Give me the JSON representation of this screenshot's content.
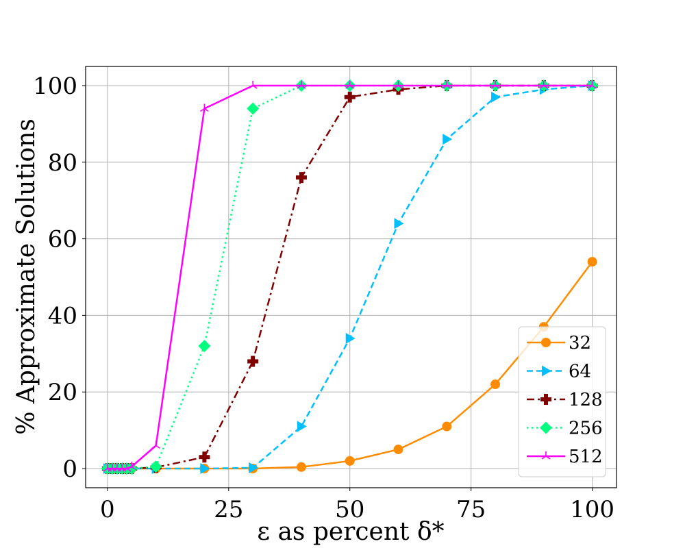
{
  "chart_data": {
    "type": "line",
    "title": "",
    "xlabel": "ε as percent δ*",
    "ylabel": "% Approximate Solutions",
    "xlim": [
      -4.5,
      105
    ],
    "ylim": [
      -5,
      105
    ],
    "xticks": [
      0,
      25,
      50,
      75,
      100
    ],
    "yticks": [
      0,
      20,
      40,
      60,
      80,
      100
    ],
    "grid": true,
    "legend_position": "lower-right",
    "series": [
      {
        "name": "32",
        "color": "#ff8c00",
        "style": "solid",
        "marker": "circle",
        "x": [
          0,
          1,
          2,
          3,
          4,
          5,
          10,
          20,
          30,
          40,
          50,
          60,
          70,
          80,
          90,
          100
        ],
        "y": [
          0,
          0,
          0,
          0,
          0,
          0,
          0,
          0,
          0,
          0.4,
          2,
          5,
          11,
          22,
          37,
          54
        ]
      },
      {
        "name": "64",
        "color": "#00bfff",
        "style": "dashed",
        "marker": "triangle-right",
        "x": [
          0,
          1,
          2,
          3,
          4,
          5,
          10,
          20,
          30,
          40,
          50,
          60,
          70,
          80,
          90,
          100
        ],
        "y": [
          0,
          0,
          0,
          0,
          0,
          0,
          0,
          0,
          0.2,
          11,
          34,
          64,
          86,
          97,
          99,
          100
        ]
      },
      {
        "name": "128",
        "color": "#800000",
        "style": "dashdot",
        "marker": "plus",
        "x": [
          0,
          1,
          2,
          3,
          4,
          5,
          10,
          20,
          30,
          40,
          50,
          60,
          70,
          80,
          90,
          100
        ],
        "y": [
          0,
          0,
          0,
          0,
          0,
          0,
          0.3,
          3,
          28,
          76,
          97,
          99,
          100,
          100,
          100,
          100
        ]
      },
      {
        "name": "256",
        "color": "#00ff7f",
        "style": "dotted",
        "marker": "diamond",
        "x": [
          0,
          1,
          2,
          3,
          4,
          5,
          10,
          20,
          30,
          40,
          50,
          60,
          70,
          80,
          90,
          100
        ],
        "y": [
          0,
          0,
          0,
          0,
          0,
          0,
          0.5,
          32,
          94,
          100,
          100,
          100,
          100,
          100,
          100,
          100
        ]
      },
      {
        "name": "512",
        "color": "#ff00ff",
        "style": "solid",
        "marker": "tri-up",
        "x": [
          0,
          1,
          2,
          3,
          4,
          5,
          10,
          20,
          30,
          40,
          50,
          60,
          70,
          80,
          90,
          100
        ],
        "y": [
          0,
          0,
          0,
          0,
          0,
          0.5,
          6,
          94,
          100,
          100,
          100,
          100,
          100,
          100,
          100,
          100
        ]
      }
    ]
  }
}
